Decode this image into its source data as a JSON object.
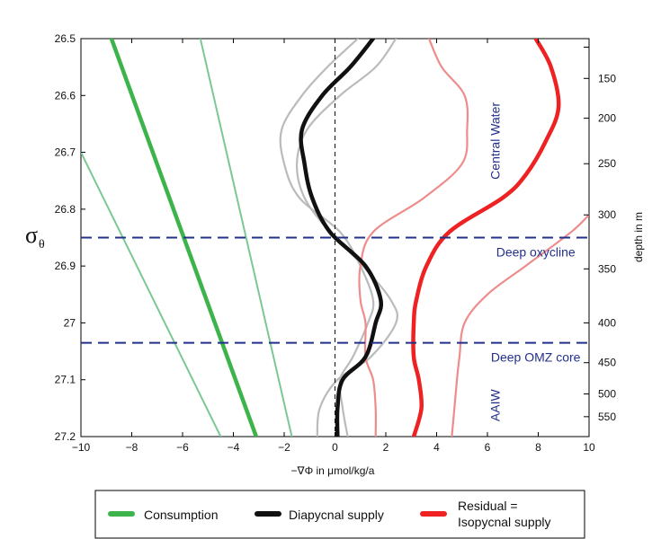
{
  "chart_data": {
    "type": "line",
    "xlabel": "−∇Φ  in μmol/kg/a",
    "ylabel": "σ",
    "ylabel_sub": "θ",
    "right_ylabel": "depth in m",
    "xlim": [
      -10,
      10
    ],
    "ylim": [
      26.5,
      27.2
    ],
    "x_ticks": [
      {
        "value": -10,
        "label": "−10"
      },
      {
        "value": -8,
        "label": "−8"
      },
      {
        "value": -6,
        "label": "−6"
      },
      {
        "value": -4,
        "label": "−4"
      },
      {
        "value": -2,
        "label": "−2"
      },
      {
        "value": 0,
        "label": "0"
      },
      {
        "value": 2,
        "label": "2"
      },
      {
        "value": 4,
        "label": "4"
      },
      {
        "value": 6,
        "label": "6"
      },
      {
        "value": 8,
        "label": "8"
      },
      {
        "value": 10,
        "label": "10"
      }
    ],
    "y_ticks": [
      {
        "value": 26.5,
        "label": "26.5"
      },
      {
        "value": 26.6,
        "label": "26.6"
      },
      {
        "value": 26.7,
        "label": "26.7"
      },
      {
        "value": 26.8,
        "label": "26.8"
      },
      {
        "value": 26.9,
        "label": "26.9"
      },
      {
        "value": 27.0,
        "label": "27"
      },
      {
        "value": 27.1,
        "label": "27.1"
      },
      {
        "value": 27.2,
        "label": "27.2"
      }
    ],
    "depth_ticks": [
      {
        "sigma": 26.57,
        "label": "150"
      },
      {
        "sigma": 26.64,
        "label": "200"
      },
      {
        "sigma": 26.72,
        "label": "250"
      },
      {
        "sigma": 26.81,
        "label": "300"
      },
      {
        "sigma": 26.905,
        "label": "350"
      },
      {
        "sigma": 27.0,
        "label": "400"
      },
      {
        "sigma": 27.07,
        "label": "450"
      },
      {
        "sigma": 27.125,
        "label": "500"
      },
      {
        "sigma": 27.165,
        "label": "550"
      }
    ],
    "depth_minor_ticks": [
      26.515
    ],
    "zero_line_x": 0,
    "hlines": [
      26.85,
      27.035
    ],
    "regions": [
      {
        "label": "Central Water",
        "x": 6.3,
        "sigma": 26.68,
        "rotate": true
      },
      {
        "label": "Deep oxycline",
        "x": 7.9,
        "sigma": 26.875,
        "rotate": false
      },
      {
        "label": "Deep OMZ core",
        "x": 7.9,
        "sigma": 27.06,
        "rotate": false
      },
      {
        "label": "AAIW",
        "x": 6.3,
        "sigma": 27.145,
        "rotate": true
      }
    ],
    "series": [
      {
        "name": "Consumption (bound)",
        "role": "bound",
        "color": "#7cc894",
        "width": 2,
        "points": [
          [
            -10,
            26.7
          ],
          [
            -4.5,
            27.2
          ]
        ]
      },
      {
        "name": "Consumption (bound)",
        "role": "bound",
        "color": "#7cc894",
        "width": 2,
        "points": [
          [
            -5.3,
            26.5
          ],
          [
            -1.7,
            27.2
          ]
        ]
      },
      {
        "name": "Consumption",
        "role": "main",
        "color": "#3cb44b",
        "width": 4.5,
        "points": [
          [
            -8.8,
            26.5
          ],
          [
            -3.1,
            27.2
          ]
        ]
      },
      {
        "name": "Diapycnal supply (bound)",
        "role": "bound",
        "color": "#bbbbbb",
        "width": 2.2,
        "points": [
          [
            2.4,
            26.5
          ],
          [
            1.6,
            26.55
          ],
          [
            0.2,
            26.6
          ],
          [
            -1.1,
            26.66
          ],
          [
            -1.5,
            26.72
          ],
          [
            -1.2,
            26.78
          ],
          [
            -0.2,
            26.84
          ],
          [
            1.1,
            26.9
          ],
          [
            2.2,
            26.96
          ],
          [
            2.4,
            27.0
          ],
          [
            1.4,
            27.06
          ],
          [
            0.1,
            27.1
          ],
          [
            -0.6,
            27.15
          ],
          [
            -0.7,
            27.2
          ]
        ]
      },
      {
        "name": "Diapycnal supply (bound)",
        "role": "bound",
        "color": "#bbbbbb",
        "width": 2.2,
        "points": [
          [
            0.9,
            26.5
          ],
          [
            -0.3,
            26.55
          ],
          [
            -1.3,
            26.6
          ],
          [
            -2.1,
            26.66
          ],
          [
            -2.0,
            26.72
          ],
          [
            -1.4,
            26.78
          ],
          [
            0.2,
            26.84
          ],
          [
            1.0,
            26.9
          ],
          [
            1.5,
            26.96
          ],
          [
            1.3,
            27.0
          ],
          [
            0.7,
            27.06
          ],
          [
            0.2,
            27.1
          ],
          [
            0.3,
            27.15
          ],
          [
            0.5,
            27.2
          ]
        ]
      },
      {
        "name": "Diapycnal supply",
        "role": "main",
        "color": "#111111",
        "width": 4.5,
        "points": [
          [
            1.5,
            26.5
          ],
          [
            0.6,
            26.55
          ],
          [
            -0.5,
            26.6
          ],
          [
            -1.3,
            26.66
          ],
          [
            -1.2,
            26.72
          ],
          [
            -0.9,
            26.78
          ],
          [
            -0.2,
            26.84
          ],
          [
            1.2,
            26.9
          ],
          [
            1.8,
            26.96
          ],
          [
            1.6,
            27.0
          ],
          [
            1.2,
            27.06
          ],
          [
            0.3,
            27.1
          ],
          [
            0.1,
            27.15
          ],
          [
            0.1,
            27.2
          ]
        ]
      },
      {
        "name": "Residual (bound)",
        "role": "bound",
        "color": "#ee8c8c",
        "width": 2.2,
        "points": [
          [
            3.7,
            26.5
          ],
          [
            4.2,
            26.55
          ],
          [
            5.1,
            26.6
          ],
          [
            5.2,
            26.66
          ],
          [
            5.0,
            26.72
          ],
          [
            3.5,
            26.78
          ],
          [
            1.5,
            26.84
          ],
          [
            1.0,
            26.9
          ],
          [
            1.0,
            26.96
          ],
          [
            1.2,
            27.0
          ],
          [
            1.2,
            27.06
          ],
          [
            1.5,
            27.1
          ],
          [
            1.6,
            27.15
          ],
          [
            1.6,
            27.2
          ]
        ]
      },
      {
        "name": "Residual (bound)",
        "role": "bound",
        "color": "#ee8c8c",
        "width": 2.2,
        "points": [
          [
            10.0,
            26.81
          ],
          [
            9.3,
            26.84
          ],
          [
            7.5,
            26.9
          ],
          [
            6.0,
            26.95
          ],
          [
            5.1,
            27.0
          ],
          [
            4.9,
            27.06
          ],
          [
            4.8,
            27.1
          ],
          [
            4.7,
            27.15
          ],
          [
            4.6,
            27.2
          ]
        ]
      },
      {
        "name": "Residual = Isopycnal supply",
        "role": "main",
        "color": "#ee2222",
        "width": 4.5,
        "points": [
          [
            7.9,
            26.5
          ],
          [
            8.5,
            26.55
          ],
          [
            8.8,
            26.62
          ],
          [
            8.3,
            26.68
          ],
          [
            7.5,
            26.74
          ],
          [
            6.6,
            26.78
          ],
          [
            4.5,
            26.84
          ],
          [
            3.6,
            26.9
          ],
          [
            3.2,
            26.96
          ],
          [
            3.1,
            27.0
          ],
          [
            3.1,
            27.06
          ],
          [
            3.3,
            27.1
          ],
          [
            3.4,
            27.15
          ],
          [
            3.1,
            27.2
          ]
        ]
      }
    ]
  },
  "legend": {
    "items": [
      {
        "label": "Consumption",
        "color": "#3cb44b"
      },
      {
        "label": "Diapycnal supply",
        "color": "#111111"
      },
      {
        "label_line1": "Residual =",
        "label_line2": "Isopycnal supply",
        "color": "#ee2222"
      }
    ]
  }
}
